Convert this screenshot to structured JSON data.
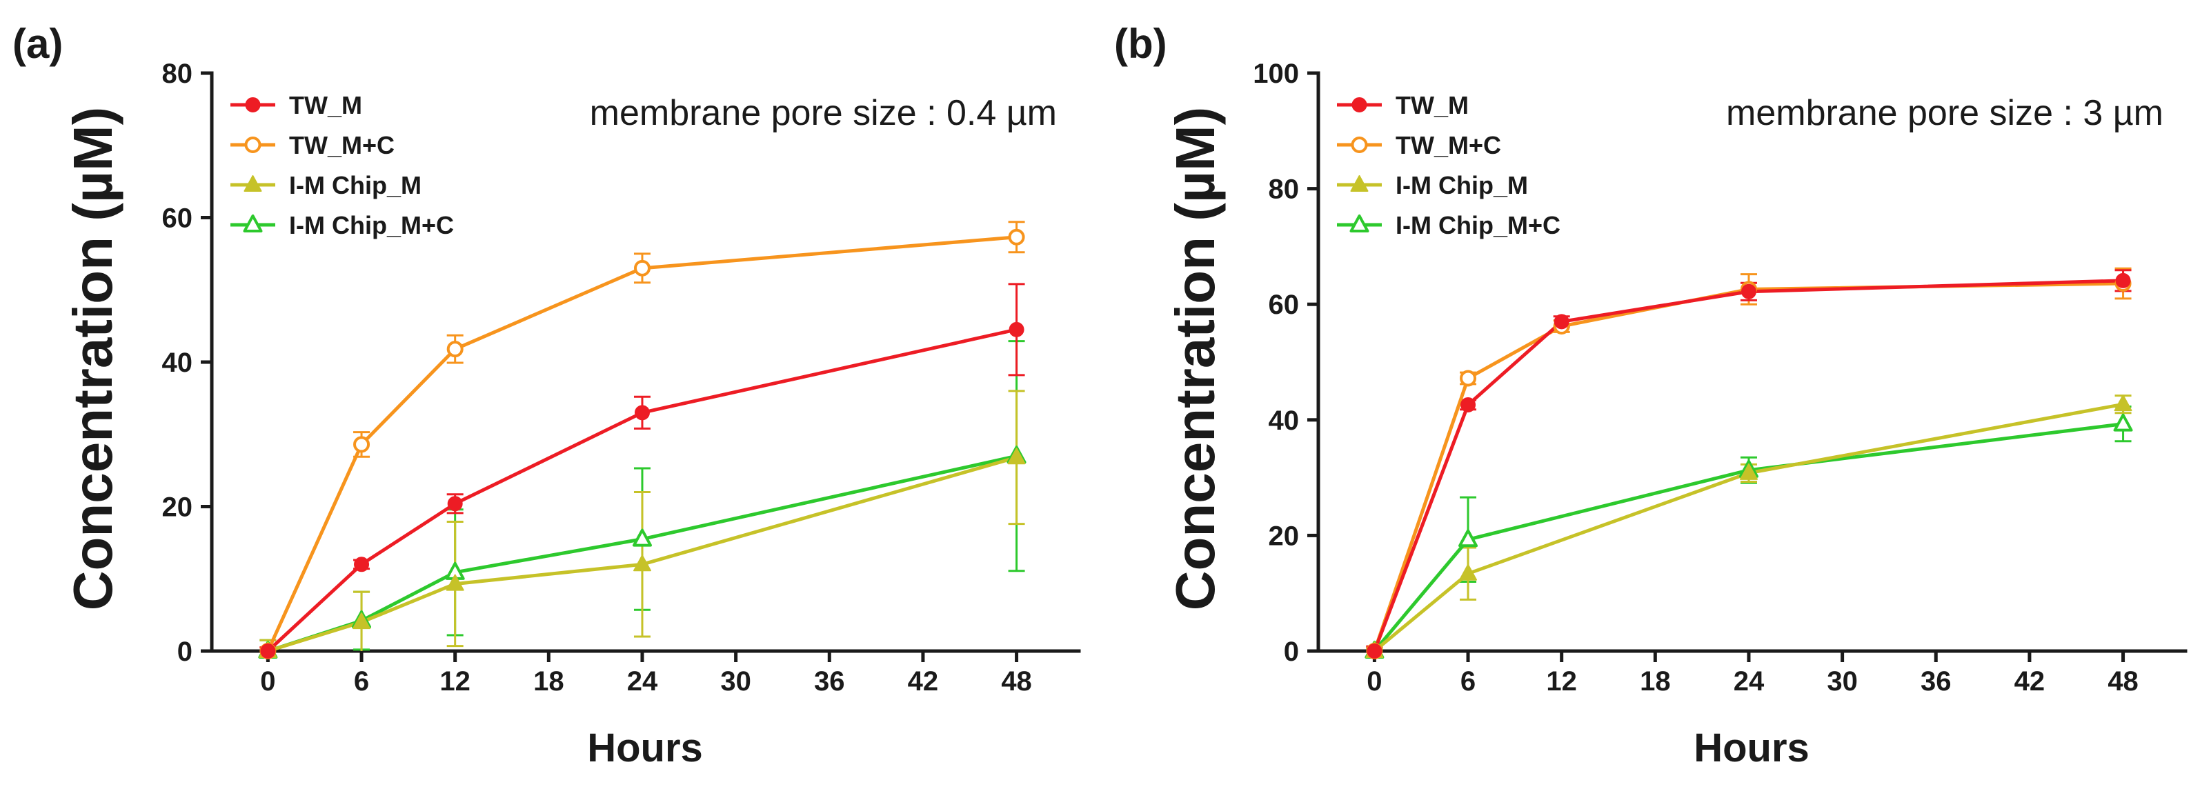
{
  "chart_data": [
    {
      "panel_label": "(a)",
      "type": "line",
      "annotation": "membrane pore size : 0.4 µm",
      "xlabel": "Hours",
      "ylabel": "Concentration (µM)",
      "xlim": [
        -3.6,
        52
      ],
      "ylim": [
        0,
        80
      ],
      "xticks": [
        0,
        6,
        12,
        18,
        24,
        30,
        36,
        42,
        48
      ],
      "yticks": [
        0,
        20,
        40,
        60,
        80
      ],
      "grid": false,
      "legend": "top-left",
      "series": [
        {
          "name": "TW_M",
          "color": "#ED1C24",
          "marker": "filled-circle",
          "x": [
            0,
            6,
            12,
            24,
            48
          ],
          "y": [
            0,
            12.0,
            20.4,
            33.0,
            44.5
          ],
          "err": [
            0.5,
            0.6,
            1.3,
            2.2,
            6.3
          ]
        },
        {
          "name": "TW_M+C",
          "color": "#F7941D",
          "marker": "open-circle",
          "x": [
            0,
            6,
            12,
            24,
            48
          ],
          "y": [
            0,
            28.6,
            41.8,
            53.0,
            57.3
          ],
          "err": [
            0.5,
            1.7,
            1.9,
            2.0,
            2.1
          ]
        },
        {
          "name": "I-M Chip_M",
          "color": "#C6C228",
          "marker": "filled-triangle",
          "x": [
            0,
            6,
            12,
            24,
            48
          ],
          "y": [
            0,
            4.0,
            9.3,
            12.0,
            26.8
          ],
          "err": [
            1.5,
            4.2,
            8.6,
            10.0,
            9.2
          ]
        },
        {
          "name": "I-M Chip_M+C",
          "color": "#2DC92D",
          "marker": "open-triangle",
          "x": [
            0,
            6,
            12,
            24,
            48
          ],
          "y": [
            0,
            4.2,
            10.9,
            15.5,
            27.0
          ],
          "err": [
            1.5,
            4.0,
            8.7,
            9.8,
            15.9
          ]
        }
      ]
    },
    {
      "panel_label": "(b)",
      "type": "line",
      "annotation": "membrane pore size : 3 µm",
      "xlabel": "Hours",
      "ylabel": "Concentration (µM)",
      "xlim": [
        -3.6,
        52
      ],
      "ylim": [
        0,
        100
      ],
      "xticks": [
        0,
        6,
        12,
        18,
        24,
        30,
        36,
        42,
        48
      ],
      "yticks": [
        0,
        20,
        40,
        60,
        80,
        100
      ],
      "grid": false,
      "legend": "top-left",
      "series": [
        {
          "name": "TW_M",
          "color": "#ED1C24",
          "marker": "filled-circle",
          "x": [
            0,
            6,
            12,
            24,
            48
          ],
          "y": [
            0,
            42.6,
            57.0,
            62.2,
            64.1
          ],
          "err": [
            0.8,
            0.8,
            0.9,
            1.5,
            1.8
          ]
        },
        {
          "name": "TW_M+C",
          "color": "#F7941D",
          "marker": "open-circle",
          "x": [
            0,
            6,
            12,
            24,
            48
          ],
          "y": [
            0,
            47.2,
            56.2,
            62.6,
            63.6
          ],
          "err": [
            0.8,
            1.0,
            1.0,
            2.6,
            2.6
          ]
        },
        {
          "name": "I-M Chip_M",
          "color": "#C6C228",
          "marker": "filled-triangle",
          "x": [
            0,
            6,
            24,
            48
          ],
          "y": [
            0,
            13.4,
            30.8,
            42.7
          ],
          "err": [
            0.5,
            4.5,
            1.5,
            1.5
          ]
        },
        {
          "name": "I-M Chip_M+C",
          "color": "#2DC92D",
          "marker": "open-triangle",
          "x": [
            0,
            6,
            24,
            48
          ],
          "y": [
            0,
            19.3,
            31.3,
            39.3
          ],
          "err": [
            0.5,
            7.3,
            2.2,
            3.0
          ]
        }
      ]
    }
  ]
}
